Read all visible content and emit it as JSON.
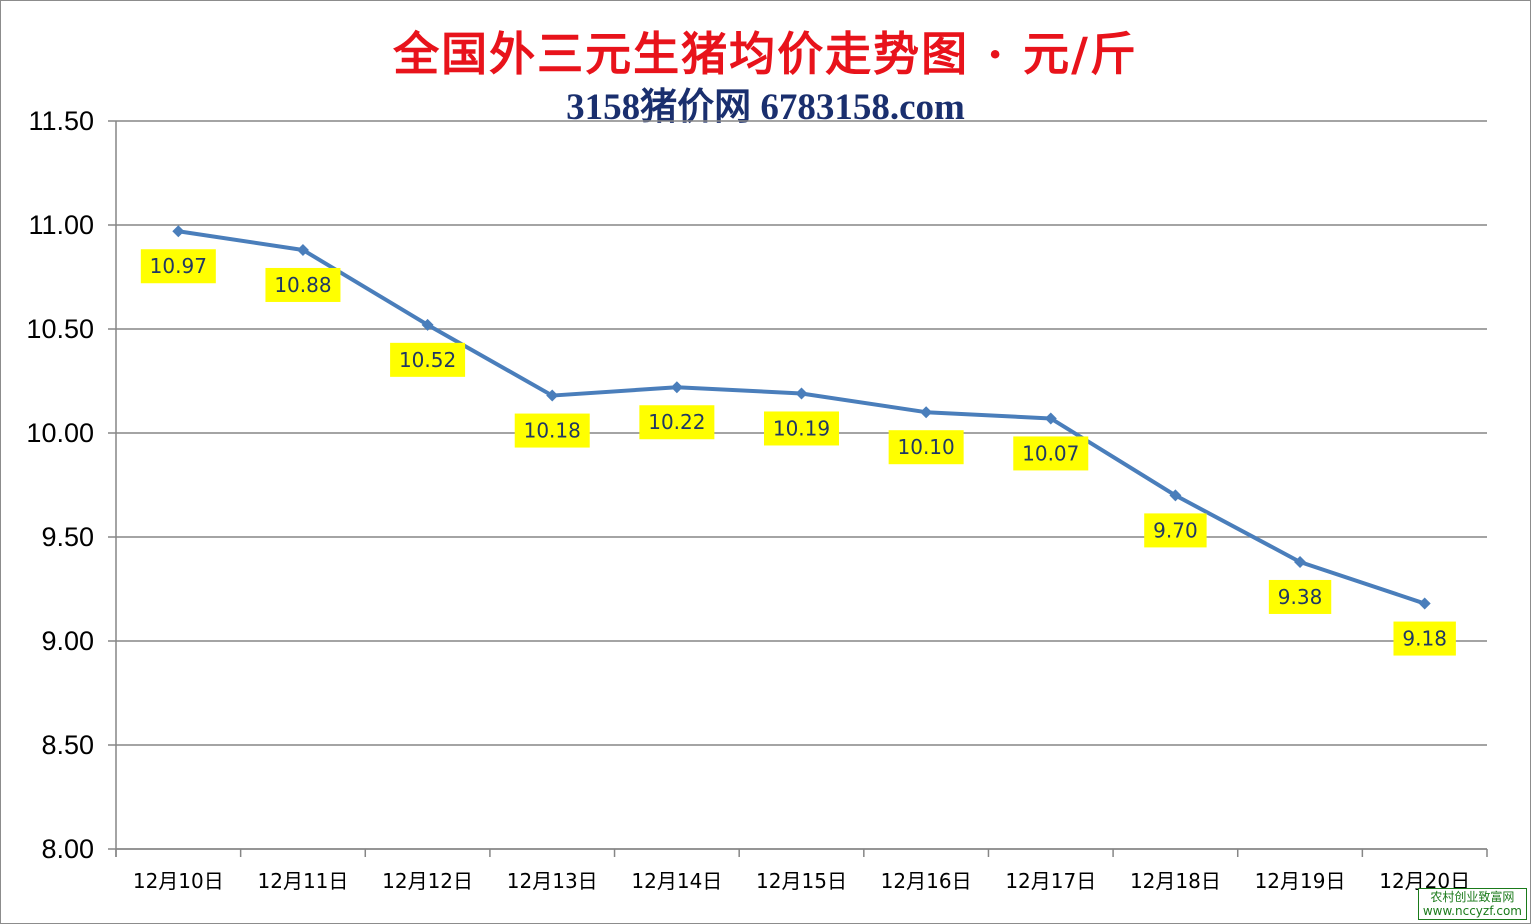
{
  "chart_data": {
    "type": "line",
    "title": "全国外三元生猪均价走势图 · 元/斤",
    "subtitle": "3158猪价网 6783158.com",
    "categories": [
      "12月10日",
      "12月11日",
      "12月12日",
      "12月13日",
      "12月14日",
      "12月15日",
      "12月16日",
      "12月17日",
      "12月18日",
      "12月19日",
      "12月20日"
    ],
    "series": [
      {
        "values": [
          10.97,
          10.88,
          10.52,
          10.18,
          10.22,
          10.19,
          10.1,
          10.07,
          9.7,
          9.38,
          9.18
        ]
      }
    ],
    "data_labels": [
      "10.97",
      "10.88",
      "10.52",
      "10.18",
      "10.22",
      "10.19",
      "10.10",
      "10.07",
      "9.70",
      "9.38",
      "9.18"
    ],
    "y_tick_labels": [
      "8.00",
      "8.50",
      "9.00",
      "9.50",
      "10.00",
      "10.50",
      "11.00",
      "11.50"
    ],
    "ylim": [
      8.0,
      11.5
    ],
    "y_step": 0.5,
    "grid": true,
    "legend": "none",
    "colors": {
      "line": "#4a7ebb",
      "label_bg": "#ffff00",
      "title": "#e8131b",
      "subtitle": "#1a2f6e",
      "grid": "#868686"
    }
  },
  "watermark": {
    "line1": "农村创业致富网",
    "line2": "www.nccyzf.com"
  }
}
